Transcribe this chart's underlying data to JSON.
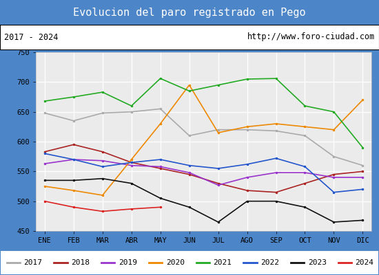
{
  "title": "Evolucion del paro registrado en Pego",
  "title_bg": "#4d86c8",
  "subtitle_left": "2017 - 2024",
  "subtitle_right": "http://www.foro-ciudad.com",
  "months": [
    "ENE",
    "FEB",
    "MAR",
    "ABR",
    "MAY",
    "JUN",
    "JUL",
    "AGO",
    "SEP",
    "OCT",
    "NOV",
    "DIC"
  ],
  "ylim": [
    450,
    750
  ],
  "yticks": [
    450,
    500,
    550,
    600,
    650,
    700,
    750
  ],
  "series": {
    "2017": {
      "color": "#aaaaaa",
      "values": [
        648,
        635,
        648,
        650,
        655,
        610,
        620,
        620,
        618,
        610,
        575,
        560
      ]
    },
    "2018": {
      "color": "#aa2222",
      "values": [
        583,
        595,
        583,
        565,
        555,
        545,
        530,
        518,
        515,
        530,
        545,
        550
      ]
    },
    "2019": {
      "color": "#9933cc",
      "values": [
        563,
        570,
        568,
        560,
        558,
        548,
        527,
        540,
        548,
        548,
        540,
        540
      ]
    },
    "2020": {
      "color": "#ee8800",
      "values": [
        525,
        518,
        510,
        570,
        630,
        695,
        615,
        625,
        630,
        625,
        620,
        670
      ]
    },
    "2021": {
      "color": "#22aa22",
      "values": [
        668,
        675,
        683,
        660,
        706,
        685,
        695,
        705,
        706,
        660,
        650,
        590
      ]
    },
    "2022": {
      "color": "#2255cc",
      "values": [
        580,
        570,
        558,
        565,
        570,
        560,
        555,
        562,
        572,
        558,
        515,
        520
      ]
    },
    "2023": {
      "color": "#111111",
      "values": [
        535,
        535,
        538,
        530,
        505,
        490,
        465,
        500,
        500,
        490,
        465,
        468
      ]
    },
    "2024": {
      "color": "#dd2222",
      "values": [
        500,
        490,
        483,
        487,
        490,
        null,
        null,
        null,
        null,
        null,
        null,
        null
      ]
    }
  }
}
